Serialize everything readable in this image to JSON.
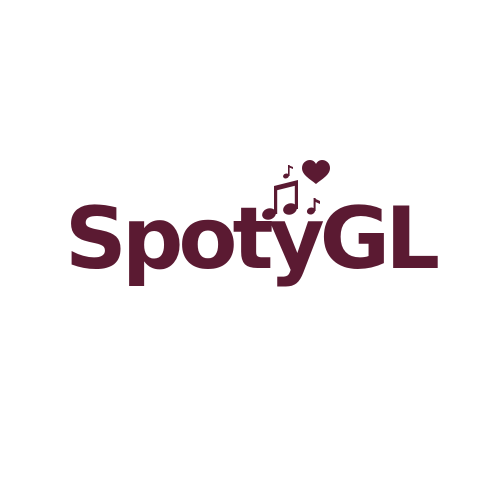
{
  "logo": {
    "brand_name": "SpotyGL",
    "icon": "music-notes-heart-icon",
    "color": "#5b1a32",
    "background": "#ffffff"
  }
}
